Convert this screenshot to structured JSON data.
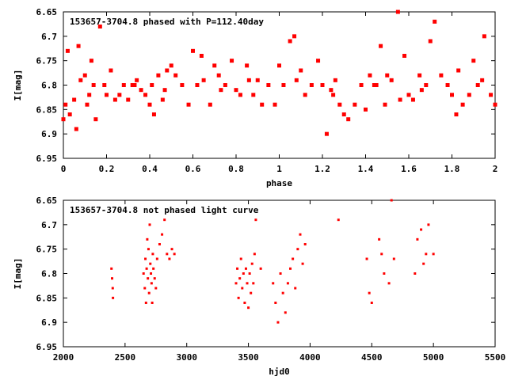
{
  "chart_data": [
    {
      "type": "scatter",
      "title": "153657-3704.8 phased with P=112.40day",
      "xlabel": "phase",
      "ylabel": "I[mag]",
      "xlim": [
        0,
        2
      ],
      "ylim": [
        6.65,
        6.95
      ],
      "y_inverted": true,
      "xticks": [
        0,
        0.2,
        0.4,
        0.6,
        0.8,
        1,
        1.2,
        1.4,
        1.6,
        1.8,
        2
      ],
      "xticklabels": [
        "0",
        "0.2",
        "0.4",
        "0.6",
        "0.8",
        "1",
        "1.2",
        "1.4",
        "1.6",
        "1.8",
        "2"
      ],
      "yticks": [
        6.65,
        6.7,
        6.75,
        6.8,
        6.85,
        6.9,
        6.95
      ],
      "yticklabels": [
        "6.65",
        "6.7",
        "6.75",
        "6.8",
        "6.85",
        "6.9",
        "6.95"
      ],
      "marker_color": "#ff0000",
      "marker": "large",
      "grid": false,
      "x": [
        0.0,
        0.01,
        0.02,
        0.03,
        0.05,
        0.06,
        0.08,
        0.1,
        0.11,
        0.12,
        0.13,
        0.15,
        0.17,
        0.19,
        0.2,
        0.22,
        0.24,
        0.26,
        0.28,
        0.3,
        0.32,
        0.34,
        0.36,
        0.38,
        0.4,
        0.41,
        0.42,
        0.44,
        0.46,
        0.48,
        0.5,
        0.52,
        0.55,
        0.58,
        0.6,
        0.62,
        0.65,
        0.68,
        0.7,
        0.72,
        0.75,
        0.78,
        0.8,
        0.82,
        0.85,
        0.88,
        0.9,
        0.92,
        0.95,
        0.98,
        1.0,
        1.02,
        1.05,
        1.07,
        1.1,
        1.12,
        1.15,
        1.18,
        1.2,
        1.22,
        1.24,
        1.26,
        1.28,
        1.3,
        1.32,
        1.35,
        1.38,
        1.4,
        1.42,
        1.44,
        1.47,
        1.49,
        1.5,
        1.52,
        1.55,
        1.58,
        1.6,
        1.62,
        1.65,
        1.68,
        1.7,
        1.72,
        1.75,
        1.78,
        1.8,
        1.82,
        1.85,
        1.88,
        1.9,
        1.92,
        1.95,
        1.98,
        2.0,
        0.07,
        0.14,
        0.33,
        0.47,
        0.64,
        0.73,
        0.86,
        1.08,
        1.25,
        1.45,
        1.56,
        1.66,
        1.83,
        1.94
      ],
      "y": [
        6.87,
        6.84,
        6.73,
        6.86,
        6.83,
        6.89,
        6.79,
        6.78,
        6.84,
        6.82,
        6.75,
        6.87,
        6.68,
        6.8,
        6.82,
        6.77,
        6.83,
        6.82,
        6.8,
        6.83,
        6.8,
        6.79,
        6.81,
        6.82,
        6.84,
        6.8,
        6.86,
        6.78,
        6.83,
        6.77,
        6.76,
        6.78,
        6.8,
        6.84,
        6.73,
        6.8,
        6.79,
        6.84,
        6.76,
        6.78,
        6.8,
        6.75,
        6.81,
        6.82,
        6.76,
        6.82,
        6.79,
        6.84,
        6.8,
        6.84,
        6.76,
        6.8,
        6.71,
        6.7,
        6.77,
        6.82,
        6.8,
        6.75,
        6.8,
        6.9,
        6.81,
        6.79,
        6.84,
        6.86,
        6.87,
        6.84,
        6.8,
        6.85,
        6.78,
        6.8,
        6.72,
        6.84,
        6.78,
        6.79,
        6.65,
        6.74,
        6.82,
        6.83,
        6.78,
        6.8,
        6.71,
        6.67,
        6.78,
        6.8,
        6.82,
        6.86,
        6.84,
        6.82,
        6.75,
        6.8,
        6.7,
        6.82,
        6.84,
        6.72,
        6.8,
        6.8,
        6.81,
        6.74,
        6.81,
        6.79,
        6.79,
        6.82,
        6.8,
        6.83,
        6.81,
        6.77,
        6.79
      ]
    },
    {
      "type": "scatter",
      "title": "153657-3704.8 not phased light curve",
      "xlabel": "hjd0",
      "ylabel": "I[mag]",
      "xlim": [
        2000,
        5500
      ],
      "ylim": [
        6.65,
        6.95
      ],
      "y_inverted": true,
      "xticks": [
        2000,
        2500,
        3000,
        3500,
        4000,
        4500,
        5000,
        5500
      ],
      "xticklabels": [
        "2000",
        "2500",
        "3000",
        "3500",
        "4000",
        "4500",
        "5000",
        "5500"
      ],
      "yticks": [
        6.65,
        6.7,
        6.75,
        6.8,
        6.85,
        6.9,
        6.95
      ],
      "yticklabels": [
        "6.65",
        "6.7",
        "6.75",
        "6.8",
        "6.85",
        "6.9",
        "6.95"
      ],
      "marker_color": "#ff0000",
      "marker": "small",
      "grid": false,
      "x": [
        2390,
        2395,
        2400,
        2402,
        2650,
        2660,
        2665,
        2670,
        2675,
        2680,
        2685,
        2690,
        2695,
        2700,
        2705,
        2710,
        2715,
        2720,
        2725,
        2730,
        2740,
        2750,
        2760,
        2780,
        2800,
        2820,
        2840,
        2860,
        2880,
        2900,
        3400,
        3410,
        3420,
        3430,
        3440,
        3450,
        3460,
        3470,
        3480,
        3490,
        3500,
        3510,
        3520,
        3530,
        3540,
        3550,
        3560,
        3600,
        3700,
        3720,
        3740,
        3760,
        3780,
        3800,
        3820,
        3840,
        3860,
        3880,
        3900,
        3920,
        3940,
        3960,
        4230,
        4460,
        4480,
        4500,
        4560,
        4580,
        4600,
        4640,
        4660,
        4680,
        4850,
        4870,
        4900,
        4920,
        4940,
        4960,
        5000
      ],
      "y": [
        6.79,
        6.81,
        6.83,
        6.85,
        6.8,
        6.83,
        6.77,
        6.86,
        6.79,
        6.73,
        6.81,
        6.75,
        6.84,
        6.7,
        6.78,
        6.8,
        6.82,
        6.86,
        6.76,
        6.79,
        6.81,
        6.83,
        6.77,
        6.74,
        6.72,
        6.69,
        6.76,
        6.77,
        6.75,
        6.76,
        6.82,
        6.79,
        6.85,
        6.81,
        6.77,
        6.83,
        6.8,
        6.86,
        6.79,
        6.82,
        6.87,
        6.8,
        6.84,
        6.78,
        6.82,
        6.76,
        6.69,
        6.79,
        6.82,
        6.86,
        6.9,
        6.8,
        6.84,
        6.88,
        6.82,
        6.79,
        6.77,
        6.83,
        6.75,
        6.72,
        6.78,
        6.74,
        6.69,
        6.77,
        6.84,
        6.86,
        6.73,
        6.76,
        6.8,
        6.82,
        6.65,
        6.77,
        6.8,
        6.73,
        6.71,
        6.78,
        6.76,
        6.7,
        6.76
      ]
    }
  ]
}
